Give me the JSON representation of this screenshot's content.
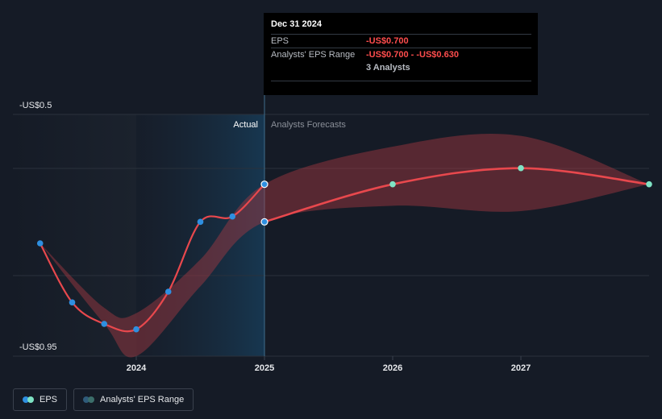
{
  "chart_data": {
    "type": "line",
    "y_axis": {
      "top_label": "-US$0.5",
      "bottom_label": "-US$0.95",
      "ylim": [
        -0.95,
        -0.5
      ]
    },
    "x_ticks": [
      "2024",
      "2025",
      "2026",
      "2027"
    ],
    "section_labels": {
      "actual": "Actual",
      "forecast": "Analysts Forecasts"
    },
    "series": [
      {
        "name": "EPS",
        "color": "#e8484d",
        "actual_points": [
          {
            "x": 2023.25,
            "y": -0.74
          },
          {
            "x": 2023.5,
            "y": -0.85
          },
          {
            "x": 2023.75,
            "y": -0.89
          },
          {
            "x": 2024.0,
            "y": -0.9
          },
          {
            "x": 2024.25,
            "y": -0.83
          },
          {
            "x": 2024.5,
            "y": -0.7
          },
          {
            "x": 2024.75,
            "y": -0.69
          },
          {
            "x": 2025.0,
            "y": -0.63
          }
        ],
        "forecast_points": [
          {
            "x": 2025.0,
            "y": -0.7
          },
          {
            "x": 2026.0,
            "y": -0.63
          },
          {
            "x": 2027.0,
            "y": -0.6
          },
          {
            "x": 2028.0,
            "y": -0.63
          }
        ]
      }
    ],
    "range_band": {
      "name": "Analysts' EPS Range",
      "color": "#a83a42",
      "upper": [
        {
          "x": 2023.25,
          "y": -0.74
        },
        {
          "x": 2023.75,
          "y": -0.86
        },
        {
          "x": 2024.0,
          "y": -0.87
        },
        {
          "x": 2024.5,
          "y": -0.77
        },
        {
          "x": 2025.0,
          "y": -0.63
        },
        {
          "x": 2026.0,
          "y": -0.56
        },
        {
          "x": 2027.0,
          "y": -0.54
        },
        {
          "x": 2028.0,
          "y": -0.63
        }
      ],
      "lower": [
        {
          "x": 2023.25,
          "y": -0.74
        },
        {
          "x": 2023.75,
          "y": -0.89
        },
        {
          "x": 2024.0,
          "y": -0.95
        },
        {
          "x": 2024.5,
          "y": -0.82
        },
        {
          "x": 2025.0,
          "y": -0.7
        },
        {
          "x": 2026.0,
          "y": -0.67
        },
        {
          "x": 2027.0,
          "y": -0.68
        },
        {
          "x": 2028.0,
          "y": -0.63
        }
      ]
    }
  },
  "tooltip": {
    "date": "Dec 31 2024",
    "rows": [
      {
        "key": "EPS",
        "value": "-US$0.700"
      },
      {
        "key": "Analysts' EPS Range",
        "value": "-US$0.700 - -US$0.630"
      }
    ],
    "analysts": "3 Analysts"
  },
  "legend": {
    "eps": "EPS",
    "range": "Analysts' EPS Range"
  },
  "colors": {
    "background": "#151b26",
    "eps_line": "#e8484d",
    "actual_dot": "#2e8fe0",
    "forecast_dot": "#7fe3c4"
  }
}
